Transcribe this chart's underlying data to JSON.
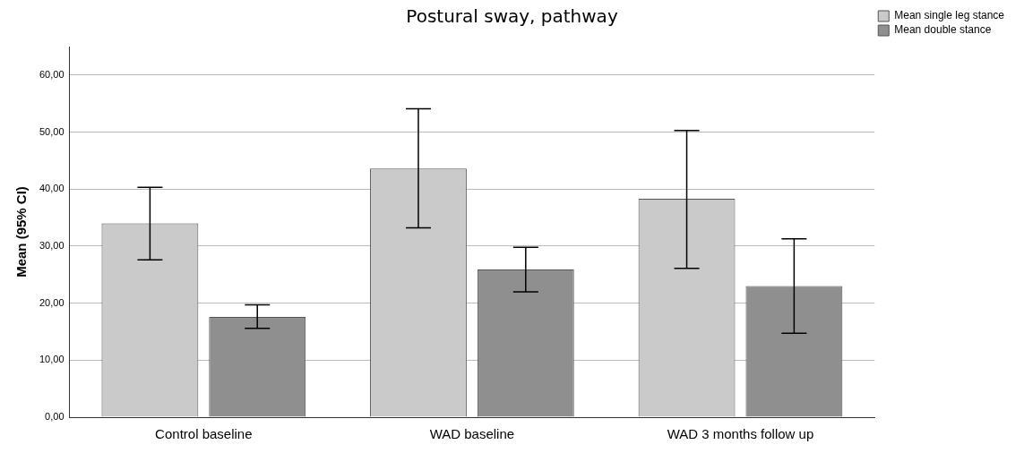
{
  "chart_data": {
    "type": "bar",
    "title": "Postural sway, pathway",
    "ylabel": "Mean (95% CI)",
    "categories": [
      "Control baseline",
      "WAD baseline",
      "WAD 3 months follow up"
    ],
    "series": [
      {
        "name": "Mean single leg stance",
        "color": "#cacaca",
        "values": [
          34.0,
          43.6,
          38.3
        ],
        "errors": [
          [
            27.6,
            40.3
          ],
          [
            33.2,
            54.1
          ],
          [
            26.1,
            50.3
          ]
        ]
      },
      {
        "name": "Mean double stance",
        "color": "#8f8f8f",
        "values": [
          17.6,
          25.9,
          23.0
        ],
        "errors": [
          [
            15.6,
            19.7
          ],
          [
            22.0,
            29.8
          ],
          [
            14.7,
            31.3
          ]
        ]
      }
    ],
    "ylim": [
      0,
      65
    ],
    "yticks": [
      {
        "value": 0,
        "label": "0,00"
      },
      {
        "value": 10,
        "label": "10,00"
      },
      {
        "value": 20,
        "label": "20,00"
      },
      {
        "value": 30,
        "label": "30,00"
      },
      {
        "value": 40,
        "label": "40,00"
      },
      {
        "value": 50,
        "label": "50,00"
      },
      {
        "value": 60,
        "label": "60,00"
      }
    ],
    "grid": "y",
    "legend": "top right"
  }
}
